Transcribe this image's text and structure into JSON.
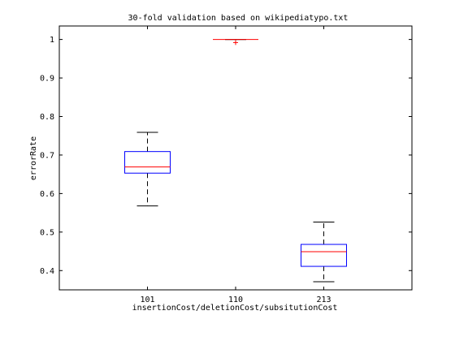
{
  "chart_data": {
    "type": "box",
    "title": "30-fold validation based on wikipediatypo.txt",
    "xlabel": "insertionCost/deletionCost/subsitutionCost",
    "ylabel": "errorRate",
    "ylim": [
      0.35,
      1.035
    ],
    "yticks": [
      0.4,
      0.5,
      0.6,
      0.7,
      0.8,
      0.9,
      1
    ],
    "ytick_labels": [
      "0.4",
      "0.5",
      "0.6",
      "0.7",
      "0.8",
      "0.9",
      "1"
    ],
    "categories": [
      "101",
      "110",
      "213"
    ],
    "boxes": [
      {
        "whisker_low": 0.568,
        "q1": 0.653,
        "median": 0.669,
        "q3": 0.709,
        "whisker_high": 0.759,
        "outliers": []
      },
      {
        "whisker_low": 1.0,
        "q1": 1.0,
        "median": 1.0,
        "q3": 1.0,
        "whisker_high": 1.0,
        "outliers": [
          0.992
        ]
      },
      {
        "whisker_low": 0.371,
        "q1": 0.411,
        "median": 0.449,
        "q3": 0.468,
        "whisker_high": 0.526,
        "outliers": []
      }
    ],
    "colors": {
      "box": "#0000ff",
      "median": "#ff0000",
      "whisker": "#000000",
      "outlier": "#ff0000"
    },
    "grid": false,
    "legend": "none"
  }
}
